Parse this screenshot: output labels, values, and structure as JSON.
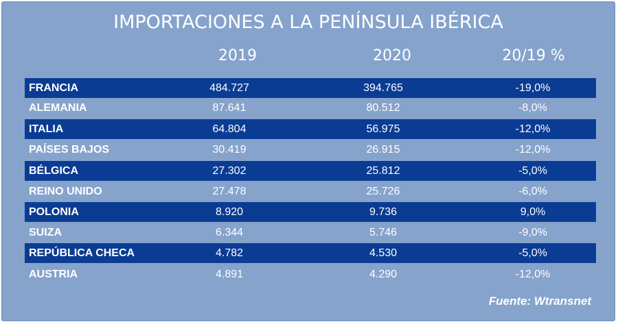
{
  "title": "IMPORTACIONES A LA PENÍNSULA IBÉRICA",
  "headers": [
    "2019",
    "2020",
    "20/19 %"
  ],
  "rows": [
    {
      "country": "FRANCIA",
      "v2019": "484.727",
      "v2020": "394.765",
      "pct": "-19,0%"
    },
    {
      "country": "ALEMANIA",
      "v2019": "87.641",
      "v2020": "80.512",
      "pct": "-8,0%"
    },
    {
      "country": "ITALIA",
      "v2019": "64.804",
      "v2020": "56.975",
      "pct": "-12,0%"
    },
    {
      "country": "PAÍSES BAJOS",
      "v2019": "30.419",
      "v2020": "26.915",
      "pct": "-12,0%"
    },
    {
      "country": "BÉLGICA",
      "v2019": "27.302",
      "v2020": "25.812",
      "pct": "-5,0%"
    },
    {
      "country": "REINO UNIDO",
      "v2019": "27.478",
      "v2020": "25.726",
      "pct": "-6,0%"
    },
    {
      "country": "POLONIA",
      "v2019": "8.920",
      "v2020": "9.736",
      "pct": "9,0%"
    },
    {
      "country": "SUIZA",
      "v2019": "6.344",
      "v2020": "5.746",
      "pct": "-9,0%"
    },
    {
      "country": "REPÚBLICA CHECA",
      "v2019": "4.782",
      "v2020": "4.530",
      "pct": "-5,0%"
    },
    {
      "country": "AUSTRIA",
      "v2019": "4.891",
      "v2020": "4.290",
      "pct": "-12,0%"
    }
  ],
  "source": "Fuente: Wtransnet",
  "colors": {
    "background": "#86a3cc",
    "row_highlight": "#0b3c94",
    "text": "#ffffff"
  }
}
